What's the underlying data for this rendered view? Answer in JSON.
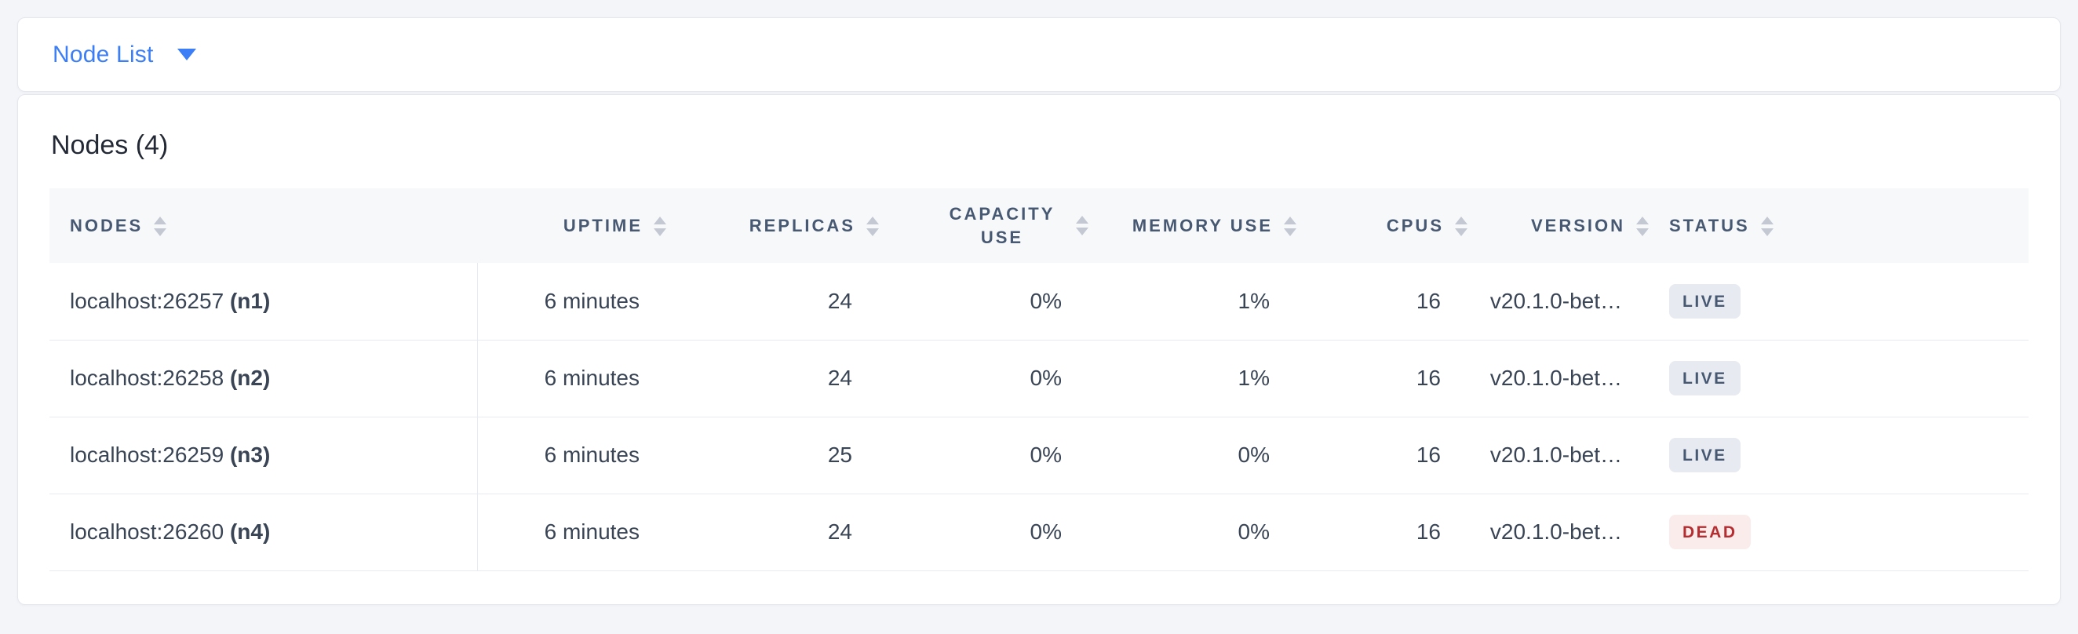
{
  "topbar": {
    "dropdown_label": "Node List"
  },
  "main": {
    "title": "Nodes (4)",
    "table": {
      "columns": [
        {
          "key": "nodes",
          "label": "NODES"
        },
        {
          "key": "uptime",
          "label": "UPTIME"
        },
        {
          "key": "replicas",
          "label": "REPLICAS"
        },
        {
          "key": "capacity_use",
          "label": "CAPACITY USE"
        },
        {
          "key": "memory_use",
          "label": "MEMORY USE"
        },
        {
          "key": "cpus",
          "label": "CPUS"
        },
        {
          "key": "version",
          "label": "VERSION"
        },
        {
          "key": "status",
          "label": "STATUS"
        }
      ],
      "rows": [
        {
          "address": "localhost:26257",
          "name": "(n1)",
          "uptime": "6 minutes",
          "replicas": "24",
          "capacity_use": "0%",
          "memory_use": "1%",
          "cpus": "16",
          "version": "v20.1.0-bet…",
          "status": "LIVE"
        },
        {
          "address": "localhost:26258",
          "name": "(n2)",
          "uptime": "6 minutes",
          "replicas": "24",
          "capacity_use": "0%",
          "memory_use": "1%",
          "cpus": "16",
          "version": "v20.1.0-bet…",
          "status": "LIVE"
        },
        {
          "address": "localhost:26259",
          "name": "(n3)",
          "uptime": "6 minutes",
          "replicas": "25",
          "capacity_use": "0%",
          "memory_use": "0%",
          "cpus": "16",
          "version": "v20.1.0-bet…",
          "status": "LIVE"
        },
        {
          "address": "localhost:26260",
          "name": "(n4)",
          "uptime": "6 minutes",
          "replicas": "24",
          "capacity_use": "0%",
          "memory_use": "0%",
          "cpus": "16",
          "version": "v20.1.0-bet…",
          "status": "DEAD"
        }
      ]
    }
  },
  "colors": {
    "accent_blue": "#3b7ef6",
    "header_text": "#475872",
    "cell_text": "#394455",
    "live_badge_bg": "#e7eaf1",
    "live_badge_text": "#475872",
    "dead_badge_bg": "#fbecec",
    "dead_badge_text": "#b52d30",
    "page_bg": "#f4f5f9"
  }
}
